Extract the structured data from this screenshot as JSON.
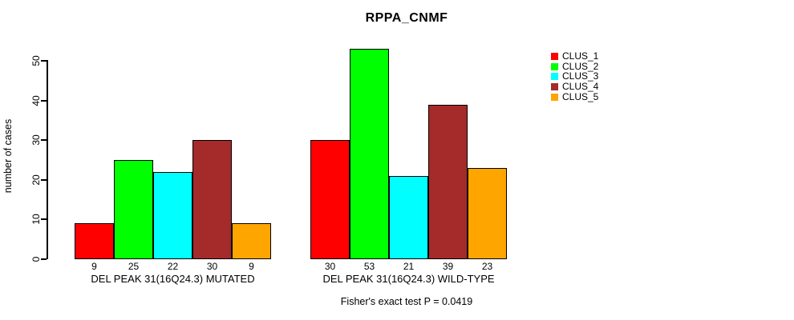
{
  "chart_data": {
    "type": "bar",
    "title": "RPPA_CNMF",
    "ylabel": "number of cases",
    "xlabel": "",
    "ylim": [
      0,
      53
    ],
    "yticks": [
      0,
      10,
      20,
      30,
      40,
      50
    ],
    "grid": false,
    "legend_position": "right",
    "bar_value_labels_shown": true,
    "categories": [
      "DEL PEAK 31(16Q24.3) MUTATED",
      "DEL PEAK 31(16Q24.3) WILD-TYPE"
    ],
    "series": [
      {
        "name": "CLUS_1",
        "color": "#FF0000",
        "values": [
          9,
          30
        ]
      },
      {
        "name": "CLUS_2",
        "color": "#00FF00",
        "values": [
          25,
          53
        ]
      },
      {
        "name": "CLUS_3",
        "color": "#00FFFF",
        "values": [
          22,
          21
        ]
      },
      {
        "name": "CLUS_4",
        "color": "#A52A2A",
        "values": [
          30,
          39
        ]
      },
      {
        "name": "CLUS_5",
        "color": "#FFA500",
        "values": [
          9,
          23
        ]
      }
    ],
    "footnote": "Fisher's exact test P = 0.0419",
    "axis_color": "#000000",
    "background_color": "#FFFFFF"
  }
}
